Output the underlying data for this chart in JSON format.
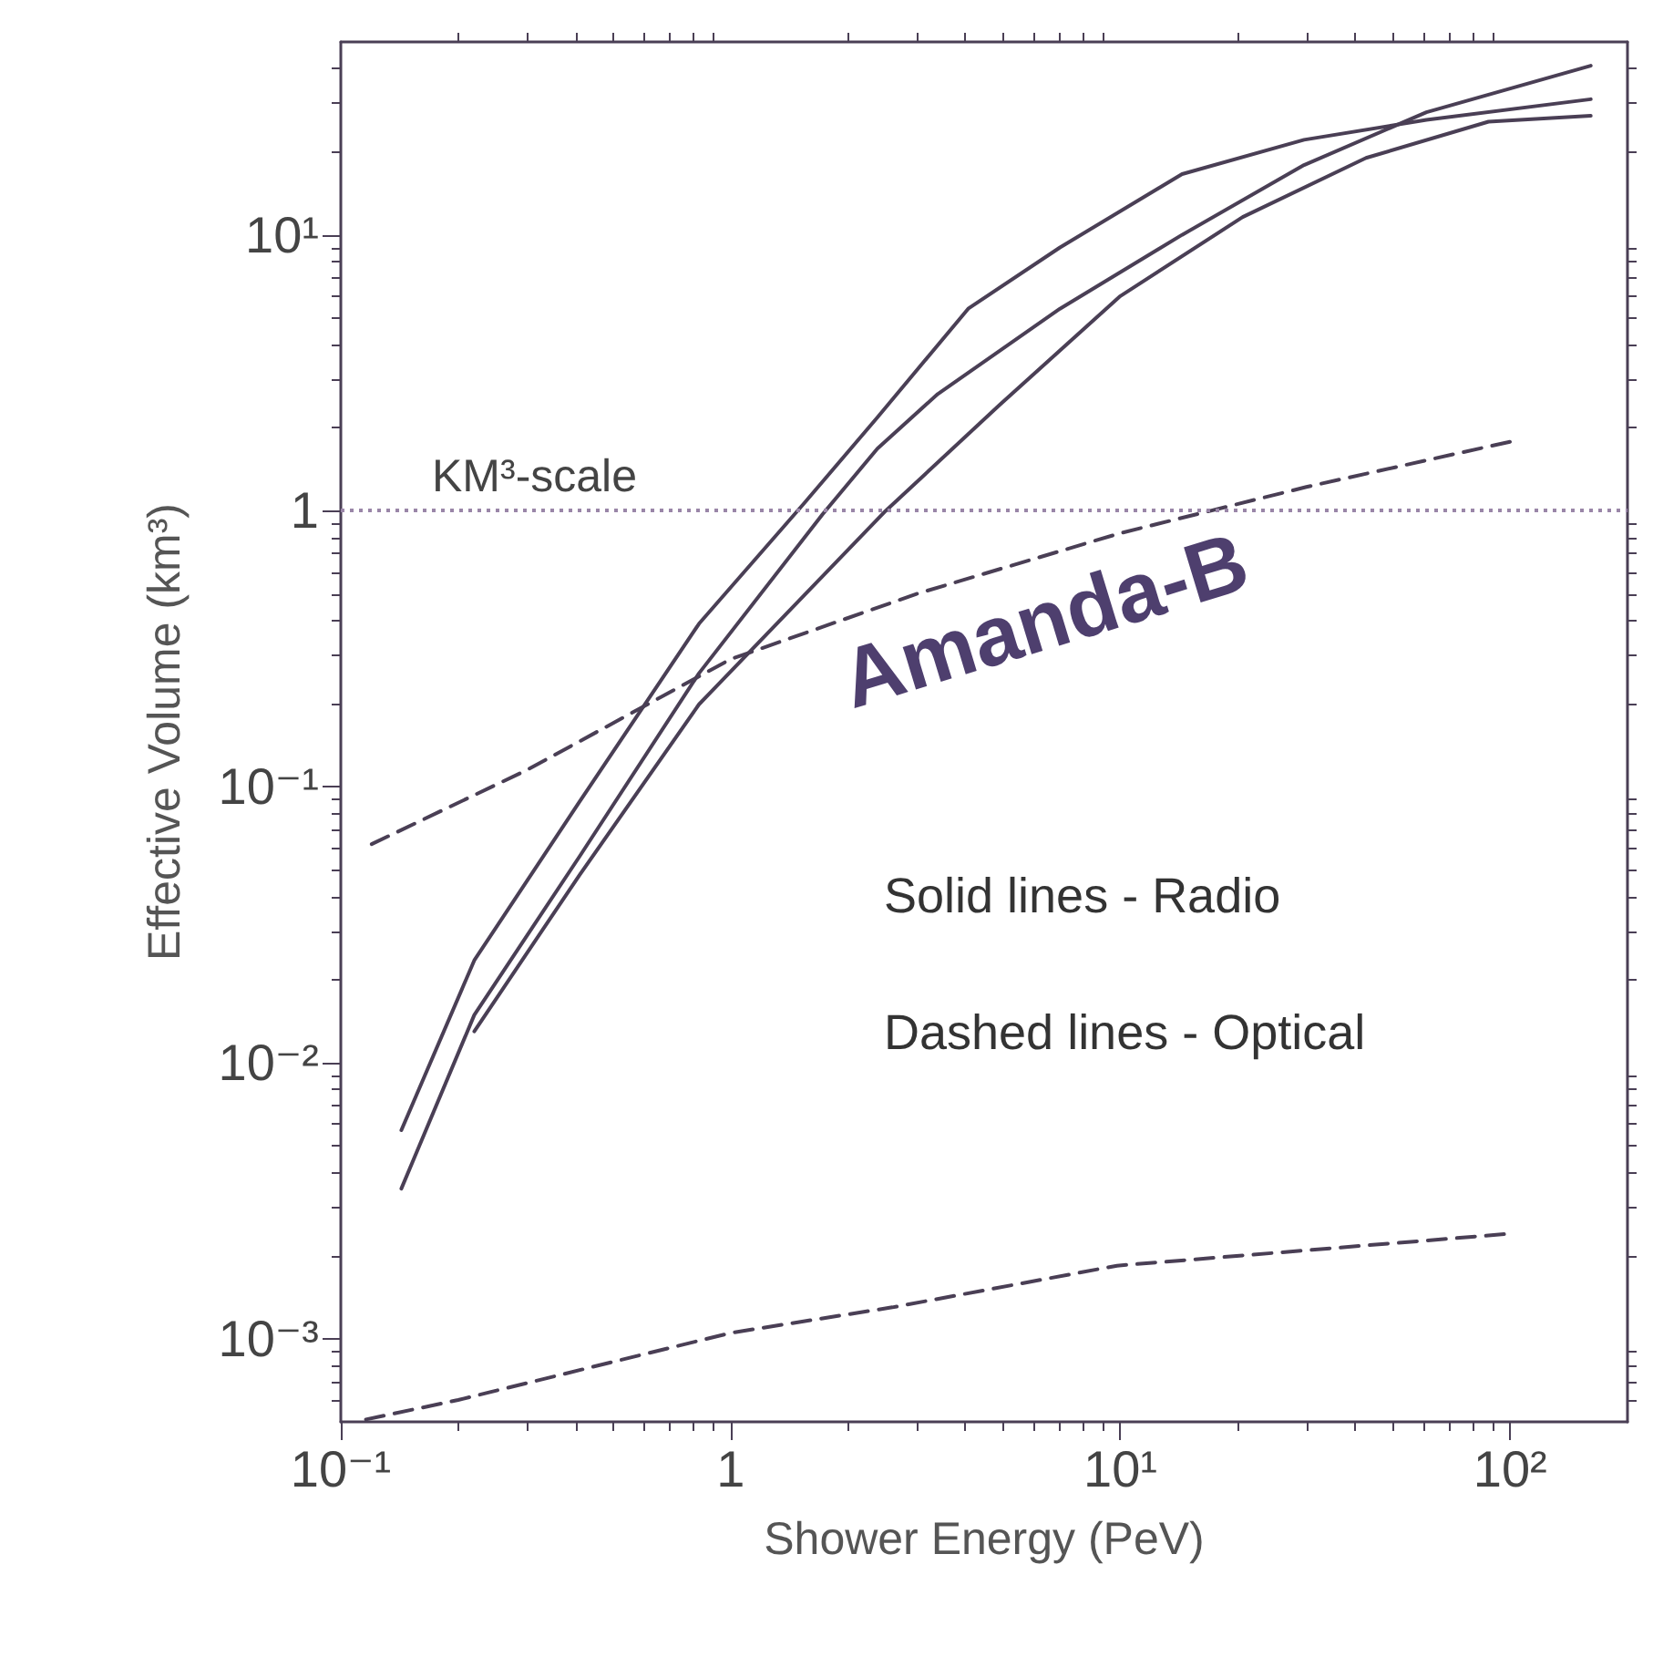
{
  "chart_data": {
    "type": "line",
    "xlabel": "Shower Energy (PeV)",
    "ylabel": "Effective Volume (km³)",
    "log": "xy",
    "xlim": [
      0.1,
      200
    ],
    "ylim": [
      0.0005,
      50
    ],
    "xticks": [
      {
        "value": 0.1,
        "label": "10⁻¹"
      },
      1,
      {
        "value": 10,
        "label": "10¹"
      },
      {
        "value": 100,
        "label": "10²"
      }
    ],
    "yticks": [
      {
        "value": 0.001,
        "label": "10⁻³"
      },
      {
        "value": 0.01,
        "label": "10⁻²"
      },
      {
        "value": 0.1,
        "label": "10⁻¹"
      },
      1,
      {
        "value": 10,
        "label": "10¹"
      }
    ],
    "marker": "none",
    "series": [
      {
        "color": "#4a3f55",
        "line_style": "solid",
        "x": [
          0.143,
          0.22,
          0.41,
          0.83,
          1.54,
          2.38,
          4.07,
          7.0,
          14.4,
          29.6,
          61,
          161
        ],
        "values": [
          0.0057,
          0.0235,
          0.0885,
          0.39,
          1.06,
          2.18,
          5.4,
          9.0,
          16.6,
          22.1,
          26.1,
          31
        ]
      },
      {
        "color": "#4a3f55",
        "line_style": "solid",
        "x": [
          0.143,
          0.22,
          0.41,
          0.83,
          1.72,
          2.38,
          3.4,
          7.0,
          14.4,
          29.6,
          61,
          161
        ],
        "values": [
          0.0035,
          0.0149,
          0.056,
          0.258,
          0.97,
          1.68,
          2.65,
          5.4,
          10,
          17.9,
          27.8,
          41
        ]
      },
      {
        "color": "#4a3f55",
        "line_style": "solid",
        "x": [
          0.22,
          0.41,
          0.83,
          2.5,
          4.9,
          10,
          20.6,
          42.7,
          88,
          161
        ],
        "values": [
          0.013,
          0.048,
          0.199,
          1.0,
          2.42,
          6.0,
          11.6,
          19,
          25.7,
          27
        ]
      },
      {
        "color": "#4a3f55",
        "line_style": "dashed",
        "x": [
          0.12,
          0.3,
          1,
          3,
          10,
          30,
          100
        ],
        "values": [
          0.062,
          0.115,
          0.29,
          0.5,
          0.83,
          1.22,
          1.78
        ]
      },
      {
        "color": "#4a3f55",
        "line_style": "dashed",
        "x": [
          0.116,
          0.2,
          1,
          2.6,
          9.8,
          31,
          99
        ],
        "values": [
          0.00051,
          0.0006,
          0.00105,
          0.0013,
          0.00184,
          0.0021,
          0.0024
        ]
      }
    ],
    "ref_lines": [
      {
        "axis": "y",
        "value": 1,
        "label": "KM³-scale",
        "color": "#9a86a8",
        "line_style": "dotted"
      }
    ],
    "annotations": [
      "Amanda-B",
      "Solid lines - Radio",
      "Dashed lines - Optical"
    ]
  }
}
